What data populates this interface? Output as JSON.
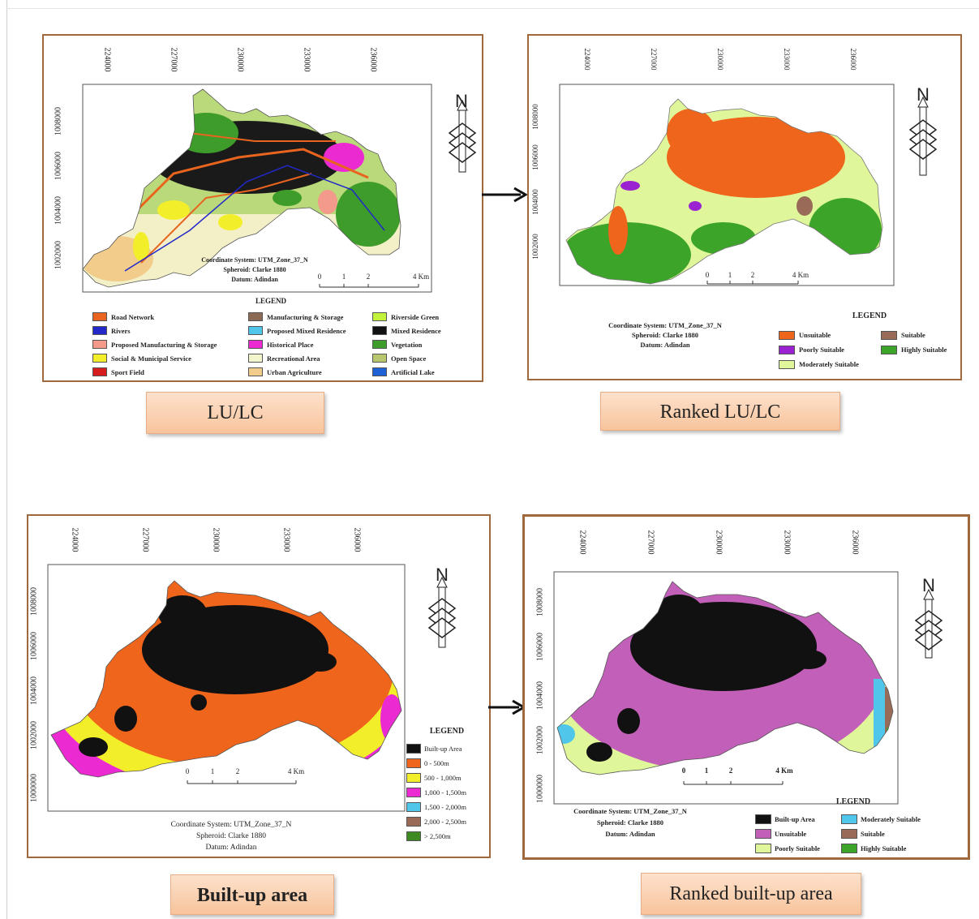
{
  "north_letter": "N",
  "panels": [
    {
      "id": "lulc",
      "xticks": [
        "224000",
        "227000",
        "230000",
        "233000",
        "236000"
      ],
      "yticks": [
        "1008000",
        "1006000",
        "1004000",
        "1002000"
      ],
      "scale_labels": [
        "0",
        "1",
        "2",
        "4 Km"
      ],
      "coord": [
        "Coordinate System: UTM_Zone_37_N",
        "Spheroid: Clarke 1880",
        "Datum: Adindan"
      ],
      "legend_title": "LEGEND",
      "legend": [
        {
          "label": "Road Network",
          "color": "#e8641f"
        },
        {
          "label": "Rivers",
          "color": "#2229c8"
        },
        {
          "label": "Proposed Manufacturing & Storage",
          "color": "#f39a8a"
        },
        {
          "label": "Social & Municipal Service",
          "color": "#f2ee2a"
        },
        {
          "label": "Sport Field",
          "color": "#d61e1e"
        },
        {
          "label": "Manufacturing & Storage",
          "color": "#8a6a55"
        },
        {
          "label": "Proposed Mixed Residence",
          "color": "#4fc6ea"
        },
        {
          "label": "Historical Place",
          "color": "#ec2ad2"
        },
        {
          "label": "Recreational Area",
          "color": "#f3f6cc"
        },
        {
          "label": "Urban Agriculture",
          "color": "#f2cc8a"
        },
        {
          "label": "Riverside Green",
          "color": "#c3f23a"
        },
        {
          "label": "Mixed Residence",
          "color": "#111111"
        },
        {
          "label": "Vegetation",
          "color": "#3d9c2a"
        },
        {
          "label": "Open Space",
          "color": "#b8c66e"
        },
        {
          "label": "Artificial Lake",
          "color": "#1f62d6"
        }
      ],
      "caption": "LU/LC"
    },
    {
      "id": "ranked_lulc",
      "xticks": [
        "224000",
        "227000",
        "230000",
        "233000",
        "236000"
      ],
      "yticks": [
        "1008000",
        "1006000",
        "1004000",
        "1002000"
      ],
      "scale_labels": [
        "0",
        "1",
        "2",
        "4 Km"
      ],
      "coord": [
        "Coordinate System: UTM_Zone_37_N",
        "Spheroid: Clarke 1880",
        "Datum: Adindan"
      ],
      "legend_title": "LEGEND",
      "legend": [
        {
          "label": "Unsuitable",
          "color": "#f0651c"
        },
        {
          "label": "Poorly Suitable",
          "color": "#9a22d0"
        },
        {
          "label": "Moderately Suitable",
          "color": "#dff79a"
        },
        {
          "label": "Suitable",
          "color": "#9a6a58"
        },
        {
          "label": "Highly Suitable",
          "color": "#3da42a"
        }
      ],
      "caption": "Ranked LU/LC"
    },
    {
      "id": "builtup",
      "xticks": [
        "224000",
        "227000",
        "230000",
        "233000",
        "236000"
      ],
      "yticks": [
        "1008000",
        "1006000",
        "1004000",
        "1002000",
        "1000000"
      ],
      "scale_labels": [
        "0",
        "1",
        "2",
        "4 Km"
      ],
      "coord": [
        "Coordinate System: UTM_Zone_37_N",
        "Spheroid: Clarke 1880",
        "Datum: Adindan"
      ],
      "legend_title": "LEGEND",
      "legend": [
        {
          "label": "Built-up Area",
          "color": "#111111"
        },
        {
          "label": "0 - 500m",
          "color": "#f0651c"
        },
        {
          "label": "500 - 1,000m",
          "color": "#f2ee2a"
        },
        {
          "label": "1,000 - 1,500m",
          "color": "#ec2ad2"
        },
        {
          "label": "1,500 - 2,000m",
          "color": "#4fc6ea"
        },
        {
          "label": "2,000 - 2,500m",
          "color": "#9a6a58"
        },
        {
          "label": "> 2,500m",
          "color": "#3d8a22"
        }
      ],
      "caption": "Built-up area"
    },
    {
      "id": "ranked_builtup",
      "xticks": [
        "224000",
        "227000",
        "230000",
        "233000",
        "236000"
      ],
      "yticks": [
        "1008000",
        "1006000",
        "1004000",
        "1002000",
        "1000000"
      ],
      "scale_labels": [
        "0",
        "1",
        "2",
        "4 Km"
      ],
      "coord": [
        "Coordinate System: UTM_Zone_37_N",
        "Spheroid: Clarke 1880",
        "Datum: Adindan"
      ],
      "legend_title": "LEGEND",
      "legend": [
        {
          "label": "Built-up Area",
          "color": "#111111"
        },
        {
          "label": "Unsuitable",
          "color": "#c25fb8"
        },
        {
          "label": "Poorly Suitable",
          "color": "#dff79a"
        },
        {
          "label": "Moderately Suitable",
          "color": "#4fc6ea"
        },
        {
          "label": "Suitable",
          "color": "#9a6a58"
        },
        {
          "label": "Highly Suitable",
          "color": "#3da42a"
        }
      ],
      "caption": "Ranked built-up area"
    }
  ]
}
